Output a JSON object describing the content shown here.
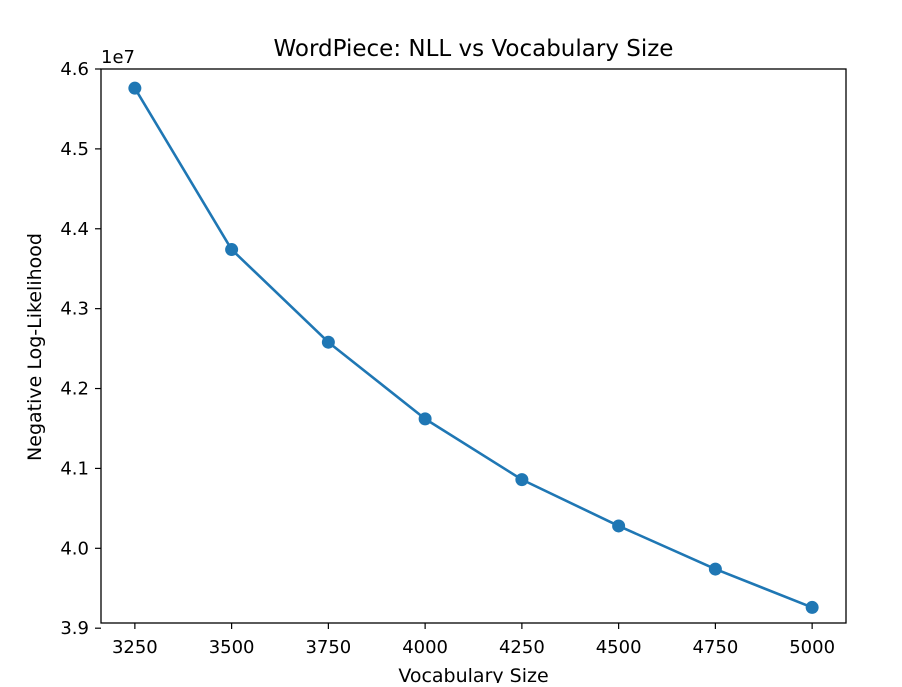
{
  "chart_data": {
    "type": "line",
    "title": "WordPiece: NLL vs Vocabulary Size",
    "xlabel": "Vocabulary Size",
    "ylabel": "Negative Log-Likelihood",
    "y_offset_label": "1e7",
    "x": [
      3250,
      3500,
      3750,
      4000,
      4250,
      4500,
      4750,
      5000
    ],
    "series": [
      {
        "values": [
          45760000,
          43740000,
          42580000,
          41620000,
          40860000,
          40280000,
          39740000,
          39260000
        ],
        "color": "#1f77b4",
        "marker": "circle"
      }
    ],
    "xlim": [
      3162.5,
      5087.5
    ],
    "ylim": [
      39065000,
      46000000
    ],
    "x_ticks": [
      3250,
      3500,
      3750,
      4000,
      4250,
      4500,
      4750,
      5000
    ],
    "x_tick_labels": [
      "3250",
      "3500",
      "3750",
      "4000",
      "4250",
      "4500",
      "4750",
      "5000"
    ],
    "y_ticks": [
      39000000,
      40000000,
      41000000,
      42000000,
      43000000,
      44000000,
      45000000,
      46000000
    ],
    "y_tick_labels": [
      "3.9",
      "4.0",
      "4.1",
      "4.2",
      "4.3",
      "4.4",
      "4.5",
      "4.6"
    ],
    "grid": false,
    "legend": "none"
  }
}
